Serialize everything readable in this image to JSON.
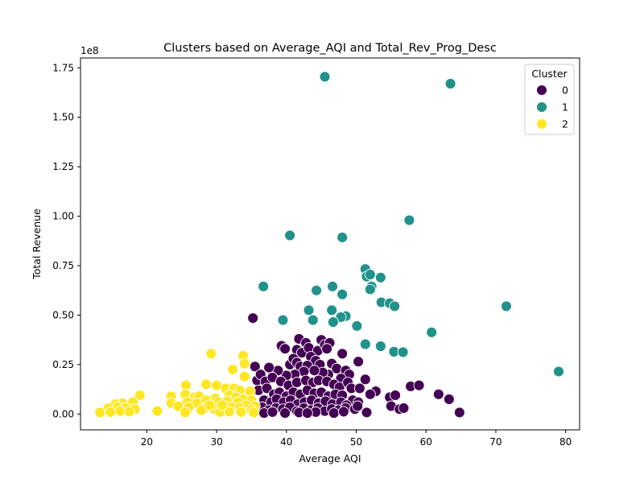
{
  "chart_data": {
    "type": "scatter",
    "title": "Clusters based on Average_AQI and Total_Rev_Prog_Desc",
    "xlabel": "Average AQI",
    "ylabel": "Total Revenue",
    "y_offset_text": "1e8",
    "xlim": [
      10.5,
      82
    ],
    "ylim": [
      -0.08,
      1.8
    ],
    "x_ticks": [
      20,
      30,
      40,
      50,
      60,
      70,
      80
    ],
    "x_tick_labels": [
      "20",
      "30",
      "40",
      "50",
      "60",
      "70",
      "80"
    ],
    "y_ticks": [
      0.0,
      0.25,
      0.5,
      0.75,
      1.0,
      1.25,
      1.5,
      1.75
    ],
    "y_tick_labels": [
      "0.00",
      "0.25",
      "0.50",
      "0.75",
      "1.00",
      "1.25",
      "1.50",
      "1.75"
    ],
    "grid": false,
    "legend": {
      "title": "Cluster",
      "position": "top-right"
    },
    "series": [
      {
        "name": "0",
        "color": "#440154",
        "points": [
          [
            35.2,
            0.485
          ],
          [
            35.5,
            0.24
          ],
          [
            39.3,
            0.345
          ],
          [
            39.8,
            0.33
          ],
          [
            41.5,
            0.325
          ],
          [
            41.8,
            0.38
          ],
          [
            42.2,
            0.31
          ],
          [
            42.8,
            0.36
          ],
          [
            43.2,
            0.335
          ],
          [
            44.5,
            0.32
          ],
          [
            45.0,
            0.375
          ],
          [
            45.5,
            0.35
          ],
          [
            46.2,
            0.36
          ],
          [
            45.8,
            0.33
          ],
          [
            48.0,
            0.305
          ],
          [
            50.3,
            0.265
          ],
          [
            43.5,
            0.29
          ],
          [
            44.2,
            0.27
          ],
          [
            40.5,
            0.25
          ],
          [
            41.0,
            0.28
          ],
          [
            41.5,
            0.26
          ],
          [
            42.0,
            0.24
          ],
          [
            43.0,
            0.245
          ],
          [
            44.8,
            0.25
          ],
          [
            46.5,
            0.255
          ],
          [
            47.2,
            0.23
          ],
          [
            48.5,
            0.22
          ],
          [
            49.0,
            0.2
          ],
          [
            47.8,
            0.18
          ],
          [
            46.0,
            0.2
          ],
          [
            45.2,
            0.21
          ],
          [
            44.0,
            0.22
          ],
          [
            42.5,
            0.215
          ],
          [
            41.2,
            0.2
          ],
          [
            40.0,
            0.195
          ],
          [
            38.8,
            0.22
          ],
          [
            37.5,
            0.235
          ],
          [
            35.8,
            0.17
          ],
          [
            36.3,
            0.2
          ],
          [
            37.0,
            0.165
          ],
          [
            38.0,
            0.185
          ],
          [
            39.2,
            0.165
          ],
          [
            40.3,
            0.145
          ],
          [
            41.5,
            0.16
          ],
          [
            42.8,
            0.17
          ],
          [
            43.8,
            0.16
          ],
          [
            44.6,
            0.17
          ],
          [
            45.8,
            0.165
          ],
          [
            46.8,
            0.15
          ],
          [
            47.6,
            0.135
          ],
          [
            48.8,
            0.16
          ],
          [
            49.3,
            0.13
          ],
          [
            50.5,
            0.13
          ],
          [
            51.3,
            0.175
          ],
          [
            52.8,
            0.115
          ],
          [
            52.0,
            0.1
          ],
          [
            54.8,
            0.085
          ],
          [
            55.6,
            0.095
          ],
          [
            57.8,
            0.14
          ],
          [
            59.0,
            0.145
          ],
          [
            61.8,
            0.1
          ],
          [
            63.3,
            0.075
          ],
          [
            64.8,
            0.008
          ],
          [
            36.0,
            0.12
          ],
          [
            37.2,
            0.13
          ],
          [
            38.2,
            0.1
          ],
          [
            39.0,
            0.11
          ],
          [
            40.0,
            0.09
          ],
          [
            41.0,
            0.11
          ],
          [
            42.0,
            0.1
          ],
          [
            43.0,
            0.12
          ],
          [
            44.0,
            0.105
          ],
          [
            45.0,
            0.11
          ],
          [
            46.0,
            0.09
          ],
          [
            47.0,
            0.1
          ],
          [
            48.0,
            0.095
          ],
          [
            49.5,
            0.07
          ],
          [
            50.3,
            0.06
          ],
          [
            36.8,
            0.07
          ],
          [
            37.8,
            0.06
          ],
          [
            38.6,
            0.075
          ],
          [
            39.6,
            0.06
          ],
          [
            40.6,
            0.07
          ],
          [
            41.6,
            0.05
          ],
          [
            42.6,
            0.06
          ],
          [
            43.6,
            0.07
          ],
          [
            44.6,
            0.055
          ],
          [
            45.6,
            0.065
          ],
          [
            46.6,
            0.05
          ],
          [
            47.8,
            0.06
          ],
          [
            48.6,
            0.045
          ],
          [
            36.5,
            0.035
          ],
          [
            37.5,
            0.02
          ],
          [
            38.5,
            0.03
          ],
          [
            39.5,
            0.025
          ],
          [
            40.5,
            0.035
          ],
          [
            41.5,
            0.015
          ],
          [
            42.5,
            0.03
          ],
          [
            43.5,
            0.02
          ],
          [
            44.5,
            0.03
          ],
          [
            45.5,
            0.015
          ],
          [
            46.5,
            0.025
          ],
          [
            47.5,
            0.02
          ],
          [
            48.5,
            0.03
          ],
          [
            49.8,
            0.025
          ],
          [
            50.2,
            0.04
          ],
          [
            51.5,
            0.008
          ],
          [
            36.8,
            0.005
          ],
          [
            38.0,
            0.01
          ],
          [
            41.8,
            0.008
          ],
          [
            44.2,
            0.01
          ],
          [
            46.8,
            0.005
          ],
          [
            48.2,
            0.012
          ],
          [
            55.0,
            0.04
          ],
          [
            56.2,
            0.025
          ],
          [
            56.8,
            0.03
          ],
          [
            39.8,
            0.005
          ],
          [
            43.0,
            0.005
          ]
        ]
      },
      {
        "name": "1",
        "color": "#21918c",
        "points": [
          [
            45.5,
            1.705
          ],
          [
            63.5,
            1.67
          ],
          [
            57.6,
            0.98
          ],
          [
            40.5,
            0.903
          ],
          [
            48.0,
            0.893
          ],
          [
            51.3,
            0.733
          ],
          [
            51.5,
            0.695
          ],
          [
            52.2,
            0.645
          ],
          [
            53.5,
            0.69
          ],
          [
            52.0,
            0.705
          ],
          [
            36.7,
            0.645
          ],
          [
            46.6,
            0.645
          ],
          [
            44.3,
            0.625
          ],
          [
            48.0,
            0.605
          ],
          [
            52.0,
            0.63
          ],
          [
            53.6,
            0.565
          ],
          [
            54.8,
            0.56
          ],
          [
            55.5,
            0.545
          ],
          [
            71.5,
            0.545
          ],
          [
            43.2,
            0.525
          ],
          [
            46.5,
            0.525
          ],
          [
            48.5,
            0.495
          ],
          [
            47.8,
            0.49
          ],
          [
            39.5,
            0.475
          ],
          [
            43.8,
            0.475
          ],
          [
            46.7,
            0.465
          ],
          [
            50.1,
            0.445
          ],
          [
            60.8,
            0.413
          ],
          [
            51.3,
            0.353
          ],
          [
            53.5,
            0.343
          ],
          [
            55.4,
            0.315
          ],
          [
            56.7,
            0.313
          ],
          [
            79.0,
            0.215
          ]
        ]
      },
      {
        "name": "2",
        "color": "#fde725",
        "points": [
          [
            29.2,
            0.305
          ],
          [
            33.8,
            0.295
          ],
          [
            34.0,
            0.255
          ],
          [
            32.3,
            0.225
          ],
          [
            34.0,
            0.19
          ],
          [
            28.5,
            0.15
          ],
          [
            30.0,
            0.145
          ],
          [
            25.6,
            0.145
          ],
          [
            31.3,
            0.13
          ],
          [
            32.5,
            0.13
          ],
          [
            33.3,
            0.12
          ],
          [
            34.8,
            0.115
          ],
          [
            19.0,
            0.095
          ],
          [
            23.5,
            0.09
          ],
          [
            25.5,
            0.1
          ],
          [
            26.8,
            0.085
          ],
          [
            27.5,
            0.09
          ],
          [
            29.8,
            0.08
          ],
          [
            31.8,
            0.095
          ],
          [
            32.8,
            0.085
          ],
          [
            33.8,
            0.075
          ],
          [
            35.0,
            0.07
          ],
          [
            18.0,
            0.06
          ],
          [
            16.5,
            0.055
          ],
          [
            15.5,
            0.05
          ],
          [
            23.5,
            0.055
          ],
          [
            25.8,
            0.06
          ],
          [
            27.2,
            0.055
          ],
          [
            28.5,
            0.07
          ],
          [
            30.3,
            0.06
          ],
          [
            31.5,
            0.065
          ],
          [
            33.0,
            0.06
          ],
          [
            34.2,
            0.045
          ],
          [
            35.5,
            0.04
          ],
          [
            14.5,
            0.03
          ],
          [
            15.8,
            0.035
          ],
          [
            17.0,
            0.03
          ],
          [
            18.3,
            0.025
          ],
          [
            24.5,
            0.04
          ],
          [
            26.0,
            0.035
          ],
          [
            28.3,
            0.03
          ],
          [
            29.7,
            0.025
          ],
          [
            31.0,
            0.03
          ],
          [
            32.2,
            0.035
          ],
          [
            33.3,
            0.03
          ],
          [
            35.0,
            0.02
          ],
          [
            13.3,
            0.008
          ],
          [
            14.8,
            0.01
          ],
          [
            16.2,
            0.015
          ],
          [
            17.5,
            0.012
          ],
          [
            21.5,
            0.015
          ],
          [
            25.5,
            0.008
          ],
          [
            30.5,
            0.01
          ],
          [
            31.8,
            0.012
          ],
          [
            33.5,
            0.01
          ],
          [
            35.3,
            0.008
          ],
          [
            27.8,
            0.02
          ],
          [
            29.0,
            0.045
          ],
          [
            30.8,
            0.045
          ]
        ]
      }
    ]
  }
}
